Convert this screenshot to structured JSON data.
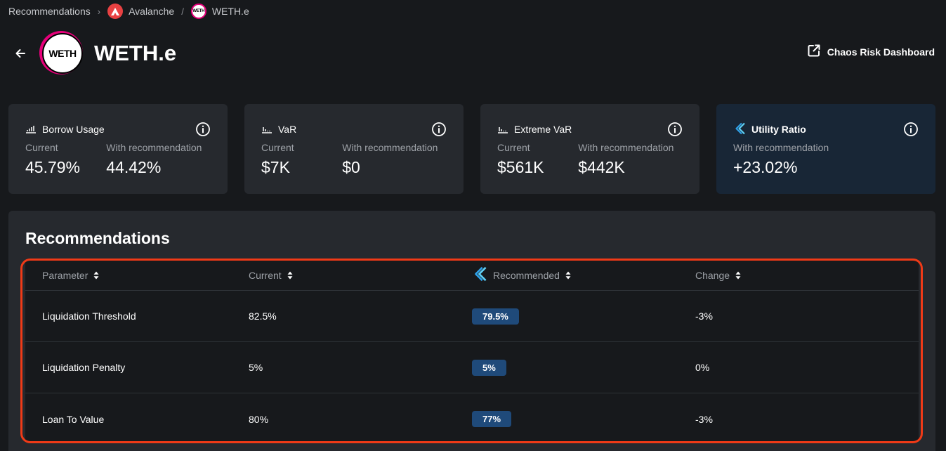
{
  "breadcrumb": {
    "items": [
      {
        "label": "Recommendations"
      },
      {
        "label": "Avalanche"
      },
      {
        "label": "WETH.e"
      }
    ],
    "chevron": "›",
    "slash": "/"
  },
  "header": {
    "title": "WETH.e",
    "logo_text": "WETH",
    "mini_logo_text": "WETH"
  },
  "dashboard_link": {
    "label": "Chaos Risk Dashboard"
  },
  "cards": [
    {
      "title": "Borrow Usage",
      "icon": "chart-icon",
      "current_label": "Current",
      "current_value": "45.79%",
      "rec_label": "With recommendation",
      "rec_value": "44.42%"
    },
    {
      "title": "VaR",
      "icon": "chart-icon",
      "current_label": "Current",
      "current_value": "$7K",
      "rec_label": "With recommendation",
      "rec_value": "$0"
    },
    {
      "title": "Extreme VaR",
      "icon": "chart-icon",
      "current_label": "Current",
      "current_value": "$561K",
      "rec_label": "With recommendation",
      "rec_value": "$442K"
    },
    {
      "title": "Utility Ratio",
      "icon": "chaos-logo-icon",
      "rec_label": "With recommendation",
      "rec_value": "+23.02%"
    }
  ],
  "recommendations": {
    "title": "Recommendations",
    "columns": [
      "Parameter",
      "Current",
      "Recommended",
      "Change"
    ],
    "rows": [
      {
        "parameter": "Liquidation Threshold",
        "current": "82.5%",
        "recommended": "79.5%",
        "change": "-3%"
      },
      {
        "parameter": "Liquidation Penalty",
        "current": "5%",
        "recommended": "5%",
        "change": "0%"
      },
      {
        "parameter": "Loan To Value",
        "current": "80%",
        "recommended": "77%",
        "change": "-3%"
      }
    ]
  },
  "colors": {
    "background": "#17191c",
    "card": "#26292e",
    "utility_card": "#182636",
    "pill": "#1f4a7a",
    "highlight": "#f03a17",
    "weth_ring": "#e6007a",
    "avalanche": "#e84142"
  }
}
